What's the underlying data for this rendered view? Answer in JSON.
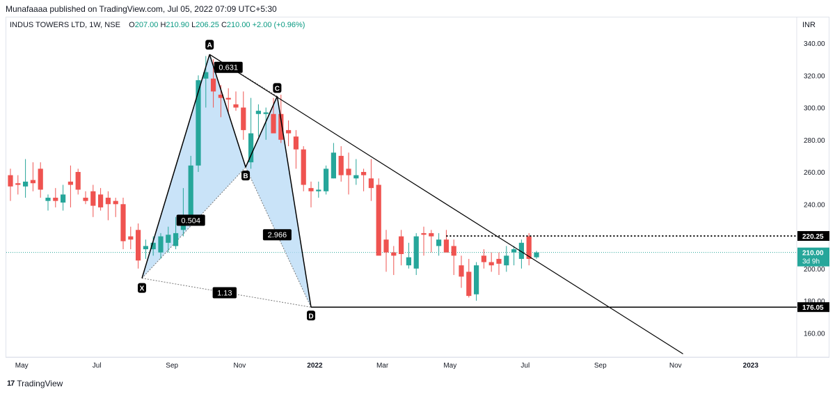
{
  "header": {
    "published": "Munafaaaa published on TradingView.com, Jul 05, 2022 07:09 UTC+5:30",
    "symbol": "INDUS TOWERS LTD, 1W, NSE",
    "o_label": "O",
    "o_value": "207.00",
    "h_label": "H",
    "h_value": "210.90",
    "l_label": "L",
    "l_value": "206.25",
    "c_label": "C",
    "c_value": "210.00",
    "change": "+2.00 (+0.96%)",
    "currency": "INR"
  },
  "footer": {
    "brand": "TradingView",
    "brand_mark": "17"
  },
  "colors": {
    "up": "#26a69a",
    "down": "#ef5350",
    "pattern_fill": "#b7daf5",
    "line": "#000000",
    "price_tag": "#26a69a",
    "level_tag": "#000000"
  },
  "chart_data": {
    "type": "candlestick",
    "ylim": [
      145,
      356
    ],
    "y_ticks": [
      160,
      180,
      200,
      220,
      240,
      260,
      280,
      300,
      320,
      340
    ],
    "x_ticks": [
      {
        "t": 1.5,
        "label": "May"
      },
      {
        "t": 11.5,
        "label": "Jul"
      },
      {
        "t": 21.5,
        "label": "Sep"
      },
      {
        "t": 30.5,
        "label": "Nov"
      },
      {
        "t": 40.5,
        "label": "2022"
      },
      {
        "t": 49.5,
        "label": "Mar"
      },
      {
        "t": 58.5,
        "label": "May"
      },
      {
        "t": 68.5,
        "label": "Jul"
      },
      {
        "t": 78.5,
        "label": "Sep"
      },
      {
        "t": 88.5,
        "label": "Nov"
      },
      {
        "t": 98.5,
        "label": "2023"
      }
    ],
    "candles": [
      [
        258,
        262,
        242,
        251
      ],
      [
        253,
        258,
        246,
        252
      ],
      [
        251,
        268,
        244,
        254
      ],
      [
        255,
        266,
        248,
        253
      ],
      [
        262,
        266,
        244,
        249
      ],
      [
        242,
        246,
        236,
        244
      ],
      [
        244,
        250,
        238,
        242
      ],
      [
        241,
        252,
        236,
        246
      ],
      [
        254,
        264,
        238,
        252
      ],
      [
        260,
        262,
        246,
        249
      ],
      [
        244,
        248,
        240,
        242
      ],
      [
        248,
        252,
        232,
        239
      ],
      [
        246,
        250,
        236,
        238
      ],
      [
        244,
        248,
        230,
        240
      ],
      [
        242,
        244,
        232,
        240
      ],
      [
        240,
        244,
        212,
        217
      ],
      [
        220,
        226,
        212,
        218
      ],
      [
        224,
        228,
        200,
        205
      ],
      [
        212,
        218,
        206,
        214
      ],
      [
        212,
        220,
        208,
        216
      ],
      [
        210,
        222,
        206,
        220
      ],
      [
        216,
        226,
        210,
        221
      ],
      [
        214,
        232,
        212,
        222
      ],
      [
        224,
        250,
        220,
        230
      ],
      [
        232,
        270,
        228,
        264
      ],
      [
        264,
        320,
        260,
        317
      ],
      [
        318,
        332,
        300,
        322
      ],
      [
        318,
        330,
        300,
        310
      ],
      [
        308,
        314,
        294,
        306
      ],
      [
        306,
        312,
        296,
        305
      ],
      [
        302,
        310,
        298,
        300
      ],
      [
        300,
        310,
        280,
        286
      ],
      [
        266,
        306,
        262,
        284
      ],
      [
        296,
        302,
        282,
        298
      ],
      [
        296,
        300,
        280,
        297
      ],
      [
        296,
        306,
        286,
        284
      ],
      [
        296,
        308,
        278,
        280
      ],
      [
        286,
        292,
        276,
        284
      ],
      [
        282,
        286,
        262,
        274
      ],
      [
        274,
        276,
        248,
        252
      ],
      [
        250,
        254,
        238,
        248
      ],
      [
        248,
        254,
        244,
        249
      ],
      [
        248,
        264,
        246,
        262
      ],
      [
        256,
        278,
        256,
        272
      ],
      [
        270,
        276,
        254,
        258
      ],
      [
        262,
        272,
        246,
        258
      ],
      [
        256,
        268,
        252,
        258
      ],
      [
        260,
        262,
        248,
        258
      ],
      [
        256,
        268,
        242,
        250
      ],
      [
        252,
        256,
        210,
        208
      ],
      [
        218,
        224,
        198,
        210
      ],
      [
        210,
        214,
        196,
        208
      ],
      [
        220,
        224,
        202,
        209
      ],
      [
        202,
        216,
        200,
        207
      ],
      [
        200,
        222,
        196,
        220
      ],
      [
        222,
        226,
        208,
        221
      ],
      [
        222,
        224,
        210,
        220
      ],
      [
        214,
        222,
        208,
        218
      ],
      [
        218,
        224,
        212,
        210
      ],
      [
        214,
        218,
        196,
        208
      ],
      [
        202,
        208,
        188,
        195
      ],
      [
        198,
        206,
        182,
        183
      ],
      [
        184,
        204,
        180,
        202
      ],
      [
        208,
        212,
        200,
        204
      ],
      [
        204,
        210,
        198,
        202
      ],
      [
        206,
        210,
        196,
        203
      ],
      [
        202,
        214,
        198,
        208
      ],
      [
        210,
        214,
        202,
        212
      ],
      [
        206,
        218,
        200,
        216
      ],
      [
        220,
        222,
        202,
        206
      ],
      [
        207,
        211,
        206,
        210
      ]
    ],
    "harmonic_pattern": {
      "points": [
        {
          "label": "X",
          "t": 17.5,
          "price": 194
        },
        {
          "label": "A",
          "t": 26.5,
          "price": 333
        },
        {
          "label": "B",
          "t": 31.3,
          "price": 263
        },
        {
          "label": "C",
          "t": 35.5,
          "price": 307
        },
        {
          "label": "D",
          "t": 40.0,
          "price": 176
        }
      ],
      "ratios": [
        {
          "label": "0.631",
          "t": 29.0,
          "price": 325
        },
        {
          "label": "0.504",
          "t": 24.0,
          "price": 230
        },
        {
          "label": "2.966",
          "t": 35.5,
          "price": 221
        },
        {
          "label": "1.13",
          "t": 28.5,
          "price": 185
        }
      ]
    },
    "trendline": {
      "from": {
        "t": 26.5,
        "price": 333
      },
      "to": {
        "t": 89.5,
        "price": 147
      }
    },
    "levels": {
      "resistance": {
        "value": "220.25",
        "price": 220.25,
        "from_t": 58
      },
      "support": {
        "value": "176.05",
        "price": 176.05,
        "from_t": 40
      }
    },
    "last_price": {
      "value": "210.00",
      "countdown": "3d 9h",
      "price": 210
    }
  }
}
